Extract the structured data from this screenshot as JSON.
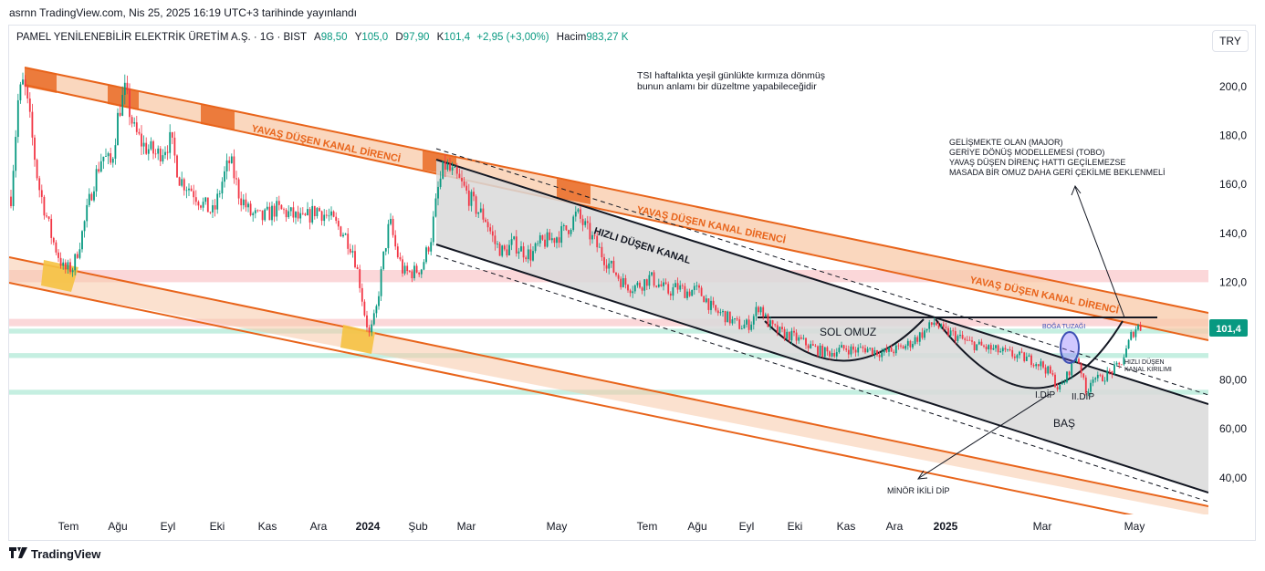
{
  "header": {
    "published": "asrnn TradingView.com, Nis 25, 2025 16:19 UTC+3 tarihinde yayınlandı"
  },
  "legend": {
    "symbol": "PAMEL YENİLENEBİLİR ELEKTRİK ÜRETİM A.Ş. · 1G · BIST",
    "open_label": "A",
    "open": "98,50",
    "high_label": "Y",
    "high": "105,0",
    "low_label": "D",
    "low": "97,90",
    "close_label": "K",
    "close": "101,4",
    "change": "+2,95 (+3,00%)",
    "volume_label": "Hacim",
    "volume": "983,27 K"
  },
  "currency_button": "TRY",
  "footer": {
    "brand": "TradingView"
  },
  "colors": {
    "up": "#089981",
    "down": "#f23645",
    "channel_orange": "#e8641b",
    "channel_fill": "#f8c9a8",
    "gray_fill": "#d9d9d9",
    "red_zone": "#f9c9cc",
    "green_zone": "#b2ead7",
    "yellow": "#f5c242"
  },
  "chart_data": {
    "type": "candlestick",
    "x_ticks": [
      "Tem",
      "Ağu",
      "Eyl",
      "Eki",
      "Kas",
      "Ara",
      "2024",
      "Şub",
      "Mar",
      "May",
      "Tem",
      "Ağu",
      "Eyl",
      "Eki",
      "Kas",
      "Ara",
      "2025",
      "Mar",
      "May"
    ],
    "y_ticks": [
      "200,0",
      "180,0",
      "160,0",
      "140,0",
      "120,0",
      "100,0",
      "80,00",
      "60,00",
      "40,00"
    ],
    "ylim": [
      26,
      218
    ],
    "last_price_label": "101,4",
    "price_path": [
      [
        0,
        155
      ],
      [
        8,
        195
      ],
      [
        14,
        202
      ],
      [
        20,
        188
      ],
      [
        30,
        160
      ],
      [
        45,
        138
      ],
      [
        58,
        125
      ],
      [
        68,
        126
      ],
      [
        78,
        140
      ],
      [
        90,
        160
      ],
      [
        100,
        172
      ],
      [
        110,
        168
      ],
      [
        118,
        190
      ],
      [
        125,
        198
      ],
      [
        135,
        182
      ],
      [
        145,
        176
      ],
      [
        160,
        172
      ],
      [
        175,
        178
      ],
      [
        185,
        162
      ],
      [
        198,
        158
      ],
      [
        210,
        152
      ],
      [
        222,
        148
      ],
      [
        232,
        162
      ],
      [
        240,
        170
      ],
      [
        250,
        156
      ],
      [
        262,
        148
      ],
      [
        275,
        146
      ],
      [
        290,
        150
      ],
      [
        305,
        148
      ],
      [
        320,
        145
      ],
      [
        335,
        150
      ],
      [
        350,
        146
      ],
      [
        365,
        140
      ],
      [
        375,
        133
      ],
      [
        382,
        120
      ],
      [
        388,
        106
      ],
      [
        393,
        98
      ],
      [
        400,
        108
      ],
      [
        408,
        130
      ],
      [
        415,
        145
      ],
      [
        422,
        133
      ],
      [
        430,
        124
      ],
      [
        440,
        124
      ],
      [
        450,
        126
      ],
      [
        460,
        138
      ],
      [
        468,
        158
      ],
      [
        475,
        168
      ],
      [
        482,
        165
      ],
      [
        490,
        162
      ],
      [
        500,
        156
      ],
      [
        510,
        150
      ],
      [
        520,
        146
      ],
      [
        530,
        136
      ],
      [
        540,
        132
      ],
      [
        550,
        136
      ],
      [
        560,
        133
      ],
      [
        570,
        131
      ],
      [
        580,
        136
      ],
      [
        595,
        138
      ],
      [
        610,
        142
      ],
      [
        620,
        148
      ],
      [
        630,
        142
      ],
      [
        640,
        136
      ],
      [
        650,
        130
      ],
      [
        660,
        125
      ],
      [
        670,
        120
      ],
      [
        680,
        118
      ],
      [
        690,
        119
      ],
      [
        700,
        122
      ],
      [
        710,
        119
      ],
      [
        720,
        116
      ],
      [
        730,
        118
      ],
      [
        740,
        116
      ],
      [
        750,
        117
      ],
      [
        760,
        114
      ],
      [
        770,
        108
      ],
      [
        780,
        107
      ],
      [
        790,
        104
      ],
      [
        800,
        102
      ],
      [
        810,
        103
      ],
      [
        820,
        111
      ],
      [
        828,
        104
      ],
      [
        835,
        101
      ],
      [
        845,
        99
      ],
      [
        855,
        98
      ],
      [
        865,
        96
      ],
      [
        875,
        94
      ],
      [
        885,
        92
      ],
      [
        895,
        91
      ],
      [
        905,
        92
      ],
      [
        915,
        93
      ],
      [
        925,
        92
      ],
      [
        935,
        93
      ],
      [
        945,
        92
      ],
      [
        955,
        91
      ],
      [
        965,
        92
      ],
      [
        975,
        93
      ],
      [
        985,
        95
      ],
      [
        995,
        98
      ],
      [
        1005,
        101
      ],
      [
        1012,
        104
      ],
      [
        1020,
        100
      ],
      [
        1030,
        99
      ],
      [
        1040,
        97
      ],
      [
        1050,
        95
      ],
      [
        1060,
        94
      ],
      [
        1070,
        93
      ],
      [
        1080,
        92
      ],
      [
        1090,
        91
      ],
      [
        1100,
        90
      ],
      [
        1110,
        89
      ],
      [
        1120,
        88
      ],
      [
        1130,
        86
      ],
      [
        1140,
        82
      ],
      [
        1148,
        76
      ],
      [
        1155,
        80
      ],
      [
        1162,
        86
      ],
      [
        1168,
        90
      ],
      [
        1172,
        85
      ],
      [
        1178,
        74
      ],
      [
        1185,
        82
      ],
      [
        1192,
        80
      ],
      [
        1200,
        82
      ],
      [
        1208,
        84
      ],
      [
        1215,
        86
      ],
      [
        1222,
        92
      ],
      [
        1228,
        99
      ],
      [
        1234,
        102
      ],
      [
        1238,
        101.4
      ]
    ],
    "levels": {
      "red_zones": [
        [
          120,
          125
        ],
        [
          102,
          105
        ]
      ],
      "green_zones": [
        [
          99,
          101
        ],
        [
          89,
          91
        ],
        [
          74,
          76
        ]
      ],
      "neckline": 105.5
    }
  },
  "annotations": {
    "tsi_note_1": "TSI haftalıkta yeşil günlükte kırmıza dönmüş",
    "tsi_note_2": "bunun anlamı bir düzeltme yapabileceğidir",
    "major_1": "GELİŞMEKTE OLAN (MAJOR)",
    "major_2": "GERİYE DÖNÜŞ MODELLEMESİ (TOBO)",
    "major_3": "YAVAŞ DÜŞEN DİRENÇ HATTI GEÇİLEMEZSE",
    "major_4": "MASADA BİR OMUZ DAHA GERİ ÇEKİLME BEKLENMELİ",
    "channel_1": "YAVAŞ DÜŞEN KANAL DİRENCİ",
    "channel_2": "YAVAŞ DÜŞEN KANAL DİRENCİ",
    "channel_3": "YAVAŞ DÜŞEN KANAL DİRENCİ",
    "fast_channel": "HIZLI DÜŞEN KANAL",
    "left_shoulder": "SOL OMUZ",
    "head": "BAŞ",
    "bull_trap": "BOĞA TUZAĞI",
    "breakout_1": "HIZLI DÜŞEN",
    "breakout_2": "KANAL KIRILIMI",
    "dip_1": "I.DİP",
    "dip_2": "II.DİP",
    "minor_double_bottom": "MİNÖR İKİLİ DİP"
  }
}
